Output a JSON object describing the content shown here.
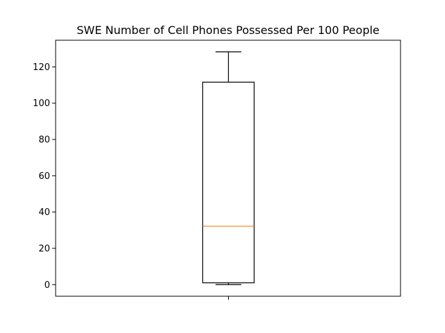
{
  "chart_data": {
    "type": "boxplot",
    "title": "SWE Number of Cell Phones Possessed Per 100 People",
    "xlabel": "",
    "ylabel": "",
    "categories": [
      ""
    ],
    "series": [
      {
        "name": "SWE",
        "whisker_low": 0.0,
        "q1": 1.0,
        "median": 32.2,
        "q3": 111.6,
        "whisker_high": 128.3
      }
    ],
    "ylim": [
      -6.4,
      134.7
    ],
    "yticks": [
      0,
      20,
      40,
      60,
      80,
      100,
      120
    ],
    "grid": false,
    "colors": {
      "box": "#000000",
      "median": "#ff7f0e",
      "axes": "#000000",
      "background": "#ffffff"
    }
  }
}
